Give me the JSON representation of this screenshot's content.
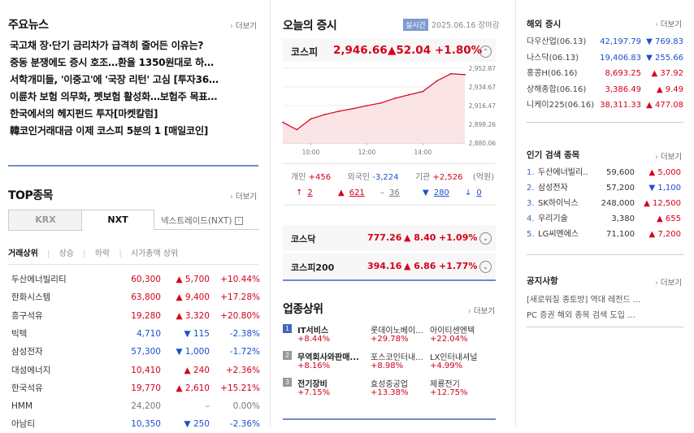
{
  "news": {
    "title": "주요뉴스",
    "more": "더보기",
    "items": [
      "국고채 장·단기 금리차가 급격히 줄어든 이유는?",
      "중동 분쟁에도 증시 호조…환율 1350원대로 하…",
      "서학개미들, '이중고'에 '국장 리턴' 고심 [투자36…",
      "이륜차 보험 의무화, 펫보험 활성화…보험주 목표…",
      "한국에서의 헤지펀드 투자[마켓칼럼]",
      "韓코인거래대금 이제 코스피 5분의 1 [매일코인]"
    ]
  },
  "top": {
    "title": "TOP종목",
    "more": "더보기",
    "tab_krx": "KRX",
    "tab_nxt": "NXT",
    "tab_link": "넥스트레이드(NXT)",
    "filters": [
      "거래상위",
      "상승",
      "하락",
      "시가총액 상위"
    ],
    "rows": [
      {
        "name": "두산에너빌리티",
        "price": "60,300",
        "chg": "▲ 5,700",
        "pct": "+10.44%",
        "dir": "up"
      },
      {
        "name": "한화시스템",
        "price": "63,800",
        "chg": "▲ 9,400",
        "pct": "+17.28%",
        "dir": "up"
      },
      {
        "name": "흥구석유",
        "price": "19,280",
        "chg": "▲ 3,320",
        "pct": "+20.80%",
        "dir": "up"
      },
      {
        "name": "빅텍",
        "price": "4,710",
        "chg": "▼ 115",
        "pct": "-2.38%",
        "dir": "down"
      },
      {
        "name": "삼성전자",
        "price": "57,300",
        "chg": "▼ 1,000",
        "pct": "-1.72%",
        "dir": "down"
      },
      {
        "name": "대성에너지",
        "price": "10,410",
        "chg": "▲ 240",
        "pct": "+2.36%",
        "dir": "up"
      },
      {
        "name": "한국석유",
        "price": "19,770",
        "chg": "▲ 2,610",
        "pct": "+15.21%",
        "dir": "up"
      },
      {
        "name": "HMM",
        "price": "24,200",
        "chg": "–",
        "pct": "0.00%",
        "dir": "flat"
      },
      {
        "name": "아남티",
        "price": "10,350",
        "chg": "▼ 250",
        "pct": "-2.36%",
        "dir": "down"
      }
    ]
  },
  "market": {
    "title": "오늘의 증시",
    "badge": "실시간",
    "date": "2025.06.16 장마감",
    "kospi_label": "코스피",
    "kospi_value": "2,946.66",
    "kospi_chg": "▲52.04",
    "kospi_pct": "+1.80%",
    "investors": [
      {
        "label": "개인",
        "value": "+456"
      },
      {
        "label": "외국인",
        "value": "-3,224"
      },
      {
        "label": "기관",
        "value": "+2,526"
      }
    ],
    "unit": "(억원)",
    "breadth": [
      {
        "sym": "↑",
        "val": "2",
        "cls": "up"
      },
      {
        "sym": "▲",
        "val": "621",
        "cls": "up"
      },
      {
        "sym": "–",
        "val": "36",
        "cls": "grey"
      },
      {
        "sym": "▼",
        "val": "280",
        "cls": "down"
      },
      {
        "sym": "↓",
        "val": "0",
        "cls": "down"
      }
    ],
    "kosdaq": {
      "label": "코스닥",
      "value": "777.26",
      "chg": "▲ 8.40",
      "pct": "+1.09%"
    },
    "kospi200": {
      "label": "코스피200",
      "value": "394.16",
      "chg": "▲ 6.86",
      "pct": "+1.77%"
    }
  },
  "chart_data": {
    "type": "line",
    "x": [
      "09:00",
      "09:30",
      "10:00",
      "10:30",
      "11:00",
      "11:30",
      "12:00",
      "12:30",
      "13:00",
      "13:30",
      "14:00",
      "14:30",
      "15:00",
      "15:30"
    ],
    "y": [
      2900.2,
      2893.0,
      2903.5,
      2907.8,
      2911.0,
      2913.5,
      2916.4,
      2919.0,
      2923.5,
      2927.0,
      2930.2,
      2940.5,
      2947.5,
      2946.66
    ],
    "xticks": [
      "10:00",
      "12:00",
      "14:00"
    ],
    "yticks": [
      "2,952.87",
      "2,934.67",
      "2,916.47",
      "2,898.26",
      "2,880.06"
    ],
    "ylim": [
      2880.06,
      2952.87
    ],
    "color": "#d4001a"
  },
  "sectors": {
    "title": "업종상위",
    "more": "더보기",
    "items": [
      {
        "rank": "1",
        "name": "IT서비스",
        "pct": "+8.44%",
        "s1": "롯데이노베이...",
        "p1": "+29.78%",
        "s2": "아이티센엔텍",
        "p2": "+22.04%"
      },
      {
        "rank": "2",
        "name": "무역회사와판매...",
        "pct": "+8.16%",
        "s1": "포스코인터내...",
        "p1": "+8.98%",
        "s2": "LX인터내셔널",
        "p2": "+4.99%"
      },
      {
        "rank": "3",
        "name": "전기장비",
        "pct": "+7.15%",
        "s1": "효성중공업",
        "p1": "+13.38%",
        "s2": "제룡전기",
        "p2": "+12.75%"
      }
    ]
  },
  "world": {
    "title": "해외 증시",
    "more": "더보기",
    "rows": [
      {
        "name": "다우산업(06.13)",
        "value": "42,197.79",
        "chg": "▼ 769.83",
        "dir": "down"
      },
      {
        "name": "나스닥(06.13)",
        "value": "19,406.83",
        "chg": "▼ 255.66",
        "dir": "down"
      },
      {
        "name": "홍콩H(06.16)",
        "value": "8,693.25",
        "chg": "▲ 37.92",
        "dir": "up"
      },
      {
        "name": "상해종합(06.16)",
        "value": "3,386.49",
        "chg": "▲ 9.49",
        "dir": "up"
      },
      {
        "name": "니케이225(06.16)",
        "value": "38,311.33",
        "chg": "▲ 477.08",
        "dir": "up"
      }
    ]
  },
  "popular": {
    "title": "인기 검색 종목",
    "more": "더보기",
    "rows": [
      {
        "rank": "1.",
        "name": "두산에너빌리..",
        "price": "59,600",
        "chg": "▲ 5,000",
        "dir": "up"
      },
      {
        "rank": "2.",
        "name": "삼성전자",
        "price": "57,200",
        "chg": "▼ 1,100",
        "dir": "down"
      },
      {
        "rank": "3.",
        "name": "SK하이닉스",
        "price": "248,000",
        "chg": "▲ 12,500",
        "dir": "up"
      },
      {
        "rank": "4.",
        "name": "우리기술",
        "price": "3,380",
        "chg": "▲ 655",
        "dir": "up"
      },
      {
        "rank": "5.",
        "name": "LG씨엔에스",
        "price": "71,100",
        "chg": "▲ 7,200",
        "dir": "up"
      }
    ]
  },
  "notice": {
    "title": "공지사항",
    "more": "더보기",
    "items": [
      "[새로워질 종토방] 역대 레전드 ...",
      "PC 증권 해외 종목 검색 도입 ..."
    ]
  }
}
